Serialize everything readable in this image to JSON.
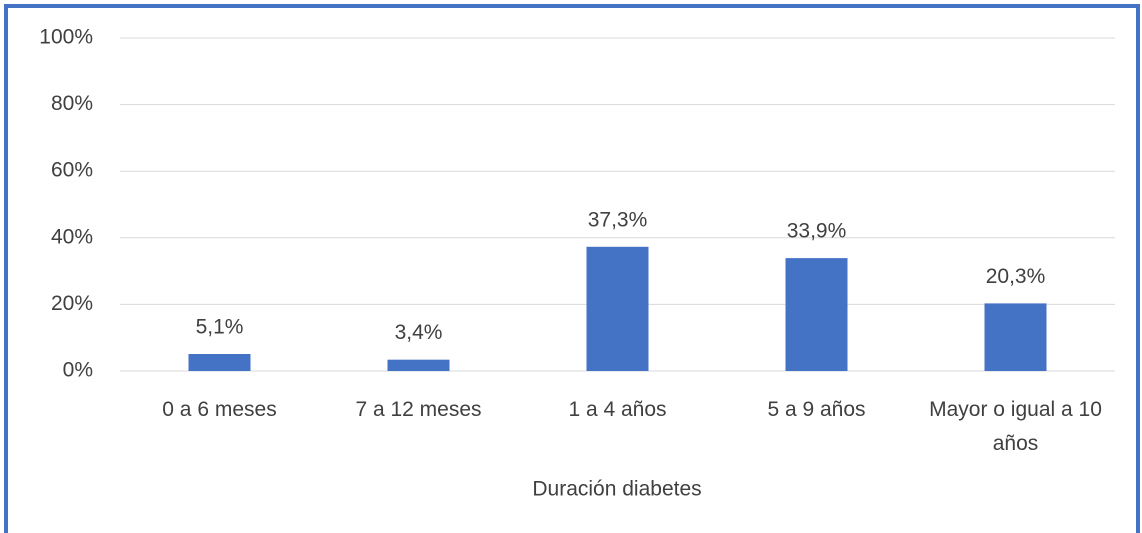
{
  "chart_data": {
    "type": "bar",
    "x_label": "Duración diabetes",
    "categories": [
      "0 a 6 meses",
      "7 a 12 meses",
      "1 a 4 años",
      "5 a 9 años",
      "Mayor o igual a 10 años"
    ],
    "values": [
      5.1,
      3.4,
      37.3,
      33.9,
      20.3
    ],
    "value_labels": [
      "5,1%",
      "3,4%",
      "37,3%",
      "33,9%",
      "20,3%"
    ],
    "color": "#4472c4",
    "ylim": [
      0,
      100
    ],
    "yticks": [
      {
        "value": 0,
        "label": "0%"
      },
      {
        "value": 20,
        "label": "20%"
      },
      {
        "value": 40,
        "label": "40%"
      },
      {
        "value": 60,
        "label": "60%"
      },
      {
        "value": 80,
        "label": "80%"
      },
      {
        "value": 100,
        "label": "100%"
      }
    ],
    "grid": true
  }
}
